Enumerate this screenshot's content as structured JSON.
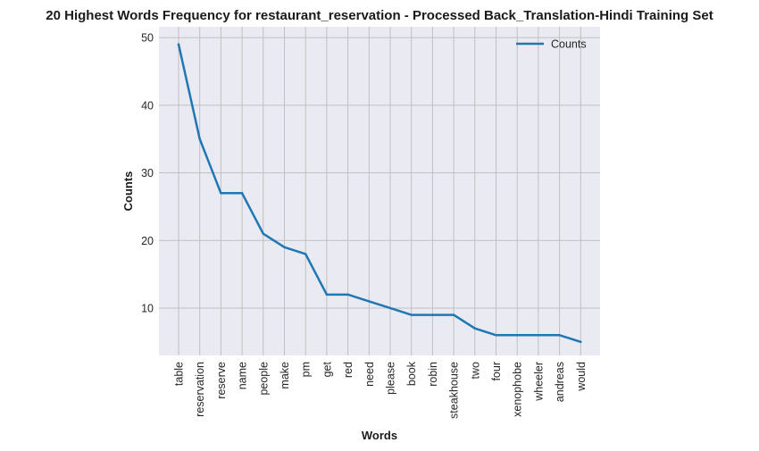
{
  "chart_data": {
    "type": "line",
    "title": "20 Highest Words Frequency for restaurant_reservation - Processed Back_Translation-Hindi Training Set",
    "xlabel": "Words",
    "ylabel": "Counts",
    "categories": [
      "table",
      "reservation",
      "reserve",
      "name",
      "people",
      "make",
      "pm",
      "get",
      "red",
      "need",
      "please",
      "book",
      "robin",
      "steakhouse",
      "two",
      "four",
      "xenophobe",
      "wheeler",
      "andreas",
      "would"
    ],
    "series": [
      {
        "name": "Counts",
        "values": [
          49,
          35,
          27,
          27,
          21,
          19,
          18,
          12,
          12,
          11,
          10,
          9,
          9,
          9,
          7,
          6,
          6,
          6,
          6,
          5
        ]
      }
    ],
    "ylim": [
      3,
      51.6
    ],
    "yticks": [
      10,
      20,
      30,
      40,
      50
    ],
    "grid": true,
    "legend_position": "top-right",
    "colors": {
      "line": "#1f77b4",
      "background": "#eaeaf2",
      "grid": "#c0c0c0"
    }
  }
}
